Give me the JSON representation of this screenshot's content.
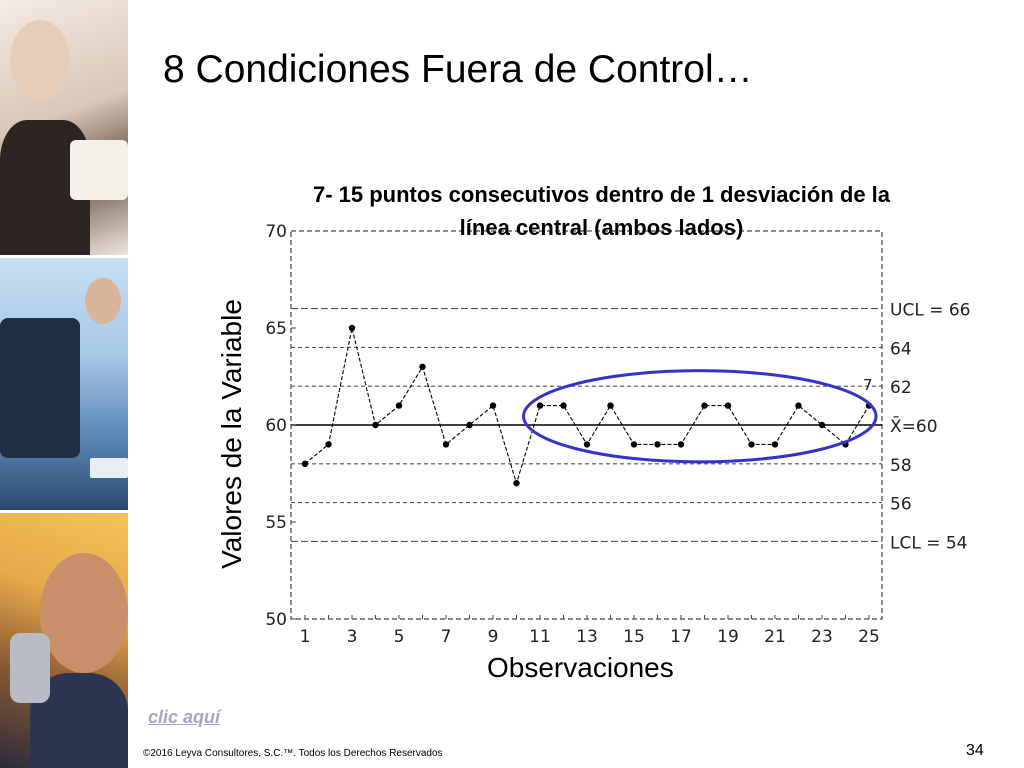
{
  "slide": {
    "title": "8 Condiciones Fuera de Control…",
    "subtitle_line1": "7- 15 puntos consecutivos dentro de 1 desviación de la",
    "subtitle_line2": "línea central (ambos lados)",
    "link_label": "clic aquí",
    "footer": "©2016 Leyva Consultores, S.C.™. Todos los Derechos Reservados",
    "page_number": "34"
  },
  "chart_data": {
    "type": "line",
    "xlabel": "Observaciones",
    "ylabel": "Valores de la Variable",
    "xlim": [
      1,
      25
    ],
    "ylim": [
      50,
      70
    ],
    "x_ticks": [
      1,
      3,
      5,
      7,
      9,
      11,
      13,
      15,
      17,
      19,
      21,
      23,
      25
    ],
    "y_ticks": [
      50,
      55,
      60,
      65,
      70
    ],
    "x": [
      1,
      2,
      3,
      4,
      5,
      6,
      7,
      8,
      9,
      10,
      11,
      12,
      13,
      14,
      15,
      16,
      17,
      18,
      19,
      20,
      21,
      22,
      23,
      24,
      25
    ],
    "values": [
      58,
      59,
      65,
      60,
      61,
      63,
      59,
      60,
      61,
      57,
      61,
      61,
      59,
      61,
      59,
      59,
      59,
      61,
      61,
      59,
      59,
      61,
      60,
      59,
      61
    ],
    "reference_lines": [
      {
        "value": 66,
        "label": "UCL = 66",
        "style": "dashed"
      },
      {
        "value": 64,
        "label": "64",
        "style": "dotted"
      },
      {
        "value": 62,
        "label": "62",
        "style": "dotted"
      },
      {
        "value": 60,
        "label": "X̄=60",
        "style": "solid"
      },
      {
        "value": 58,
        "label": "58",
        "style": "dotted"
      },
      {
        "value": 56,
        "label": "56",
        "style": "dotted"
      },
      {
        "value": 54,
        "label": "LCL = 54",
        "style": "dashed"
      }
    ],
    "annotations": [
      {
        "text": "7",
        "x": 25,
        "y": 62
      },
      {
        "type": "ellipse",
        "x_range": [
          10.3,
          25.3
        ],
        "y_range": [
          58.1,
          62.8
        ],
        "color": "#3333cc"
      }
    ],
    "line_color": "#000000",
    "ellipse_color": "#3333cc"
  }
}
